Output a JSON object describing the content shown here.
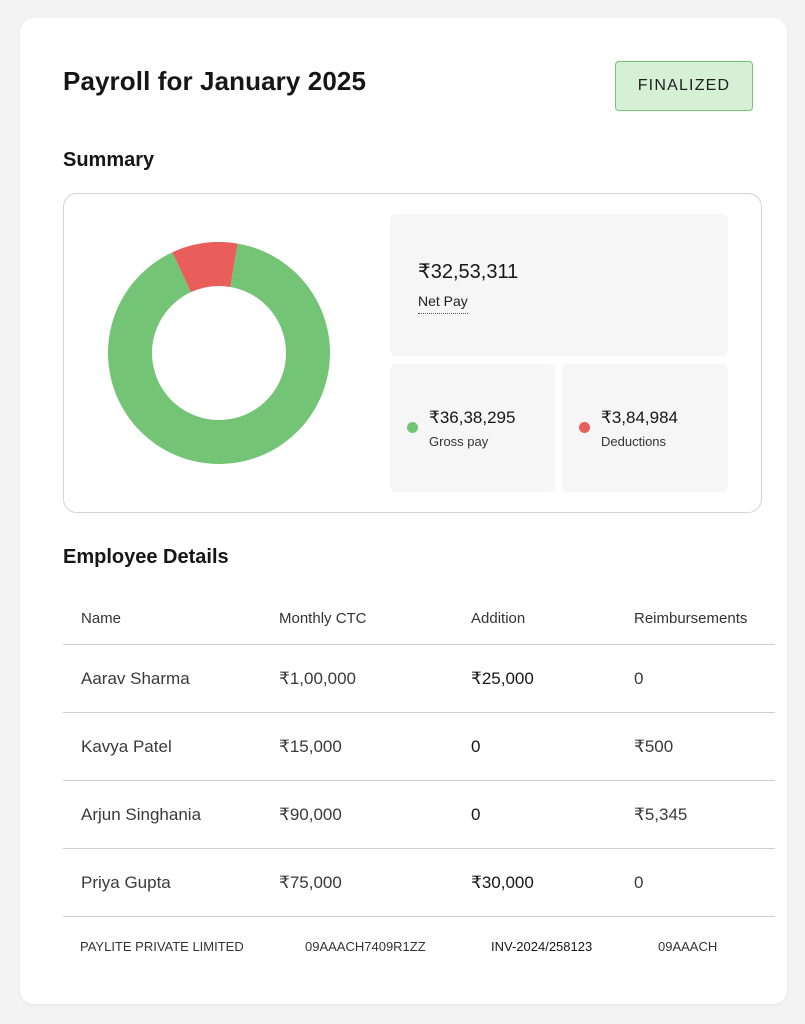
{
  "header": {
    "title": "Payroll for January 2025",
    "status": "FINALIZED"
  },
  "summary": {
    "heading": "Summary",
    "net_pay": {
      "amount": "₹32,53,311",
      "label": "Net Pay"
    },
    "gross_pay": {
      "amount": "₹36,38,295",
      "label": "Gross pay",
      "color": "#74c476"
    },
    "deductions": {
      "amount": "₹3,84,984",
      "label": "Deductions",
      "color": "#e95d5b"
    }
  },
  "chart_data": {
    "type": "pie",
    "donut": true,
    "categories": [
      "Gross pay",
      "Deductions"
    ],
    "values": [
      3638295,
      384984
    ],
    "colors": [
      "#74c476",
      "#e95d5b"
    ]
  },
  "employees": {
    "heading": "Employee Details",
    "columns": [
      "Name",
      "Monthly CTC",
      "Addition",
      "Reimbursements"
    ],
    "rows": [
      [
        "Aarav Sharma",
        "₹1,00,000",
        "₹25,000",
        "0"
      ],
      [
        "Kavya Patel",
        "₹15,000",
        "0",
        "₹500"
      ],
      [
        "Arjun Singhania",
        "₹90,000",
        "0",
        "₹5,345"
      ],
      [
        "Priya Gupta",
        "₹75,000",
        "₹30,000",
        "0"
      ]
    ]
  },
  "footer": {
    "company": "PAYLITE PRIVATE LIMITED",
    "gstin": "09AAACH7409R1ZZ",
    "invoice": "INV-2024/258123",
    "code": "09AAACH"
  }
}
